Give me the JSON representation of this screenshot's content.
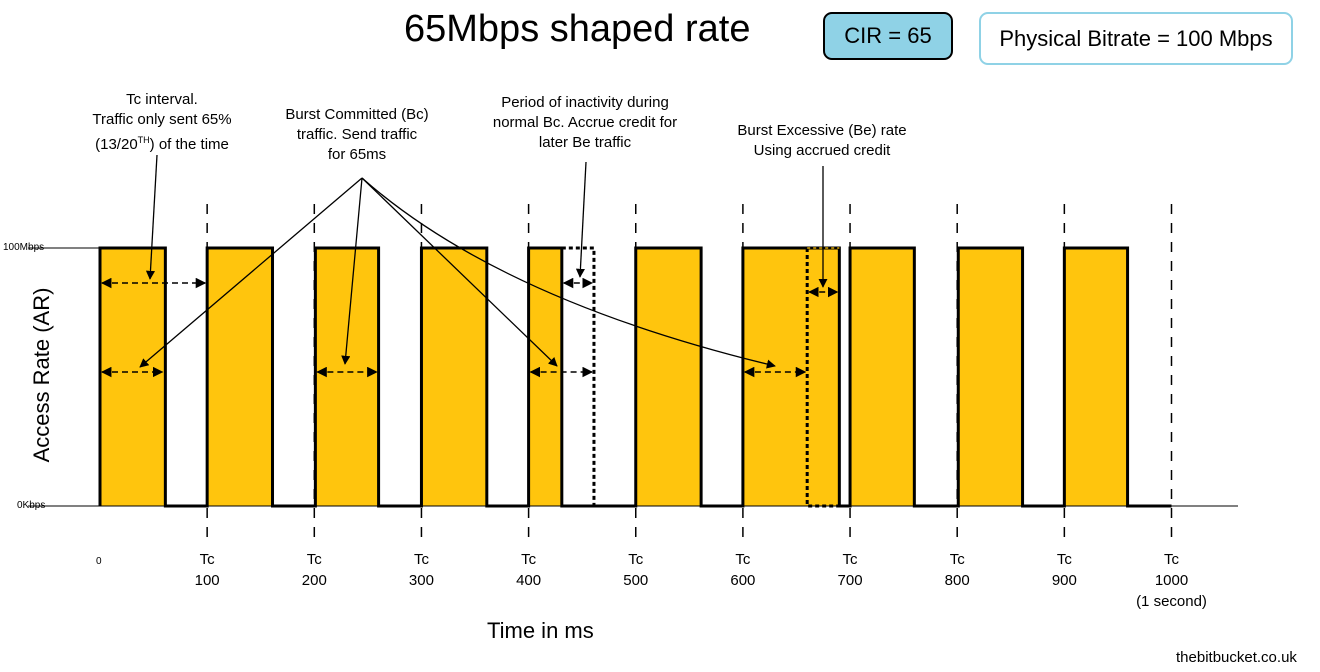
{
  "title": "65Mbps shaped rate",
  "cir_label": "CIR = 65",
  "physical_label": "Physical Bitrate = 100 Mbps",
  "y_axis": {
    "title": "Access Rate (AR)",
    "top_label": "100Mbps",
    "bottom_label": "0Kbps"
  },
  "x_axis": {
    "title": "Time in ms",
    "origin_label": "0",
    "interval_prefix": "Tc",
    "ticks": [
      "100",
      "200",
      "300",
      "400",
      "500",
      "600",
      "700",
      "800",
      "900",
      "1000"
    ],
    "last_tick_note": "(1 second)"
  },
  "annotations": {
    "tc_interval": {
      "line1": "Tc interval.",
      "line2": "Traffic only sent 65%",
      "line3_pre": "(13/20",
      "line3_sup": "TH",
      "line3_post": ") of the time"
    },
    "bc": {
      "line1": "Burst Committed (Bc)",
      "line2": "traffic. Send traffic",
      "line3": "for 65ms"
    },
    "inactivity": {
      "line1": "Period of inactivity during",
      "line2": "normal Bc. Accrue credit for",
      "line3": "later Be traffic"
    },
    "be": {
      "line1": "Burst Excessive (Be) rate",
      "line2": "Using accrued credit"
    }
  },
  "colors": {
    "burst_fill": "#ffc50d",
    "cir_box": "#8fd2e6",
    "line": "#000000"
  },
  "chart_data": {
    "type": "area",
    "unit_x": "ms",
    "unit_y": "Mbps",
    "interval_ms": 100,
    "cir_mbps": 65,
    "physical_mbps": 100,
    "ylim": [
      0,
      100
    ],
    "xlim": [
      0,
      1000
    ],
    "bursts": [
      {
        "start": 0,
        "end": 61
      },
      {
        "start": 100,
        "end": 161
      },
      {
        "start": 201,
        "end": 260
      },
      {
        "start": 300,
        "end": 361
      },
      {
        "start": 400,
        "end": 431
      },
      {
        "start": 500,
        "end": 561
      },
      {
        "start": 600,
        "end": 690
      },
      {
        "start": 700,
        "end": 760
      },
      {
        "start": 801,
        "end": 861
      },
      {
        "start": 900,
        "end": 959
      }
    ],
    "inactivity_window": {
      "start": 431,
      "end": 461
    },
    "be_window": {
      "start": 660,
      "end": 690
    }
  },
  "footer": "thebitbucket.co.uk"
}
